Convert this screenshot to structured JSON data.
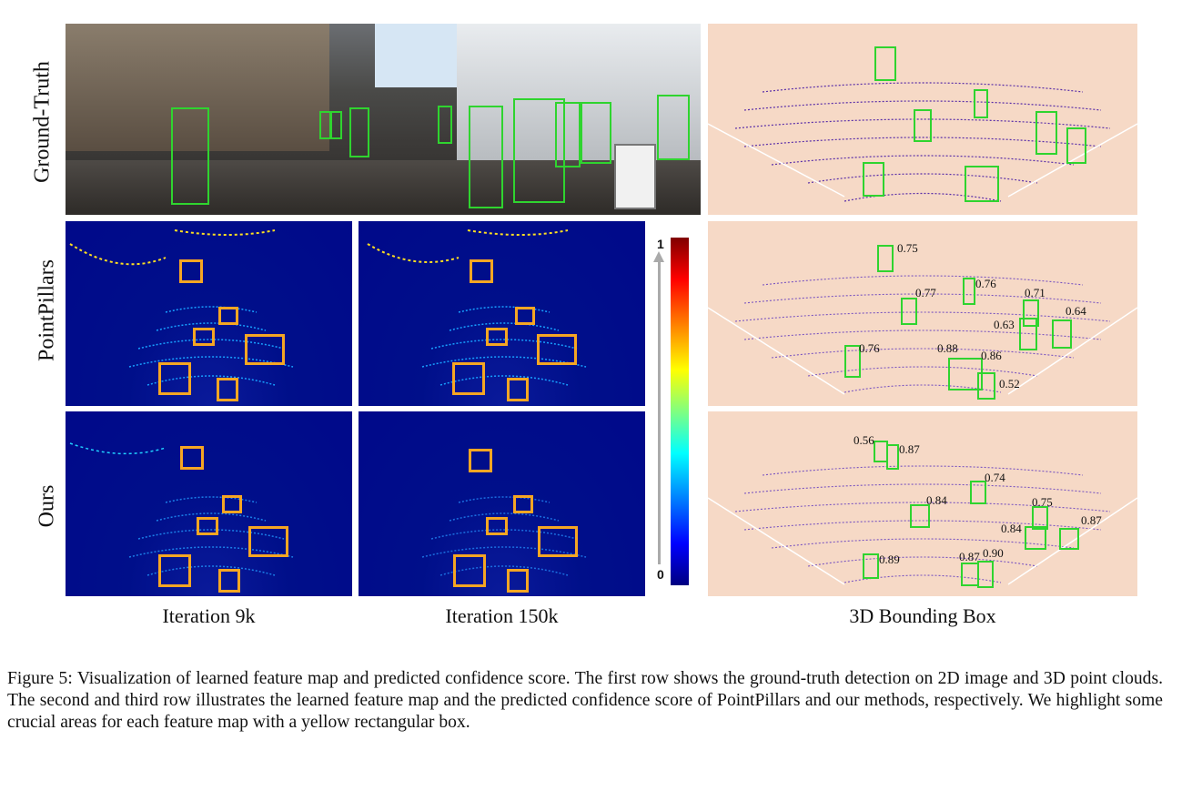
{
  "row_labels": [
    "Ground-Truth",
    "PointPillars",
    "Ours"
  ],
  "column_labels": [
    "Iteration 9k",
    "Iteration 150k",
    "3D Bounding Box"
  ],
  "colorbar": {
    "max_label": "1",
    "min_label": "0"
  },
  "pointpillars_scores": [
    "0.75",
    "0.77",
    "0.76",
    "0.71",
    "0.63",
    "0.64",
    "0.76",
    "0.88",
    "0.86",
    "0.52"
  ],
  "ours_scores": [
    "0.56",
    "0.87",
    "0.74",
    "0.84",
    "0.75",
    "0.84",
    "0.87",
    "0.89",
    "0.87",
    "0.90"
  ],
  "caption": "Figure 5: Visualization of learned feature map and predicted confidence score. The first row shows the ground-truth detection on 2D image and 3D point clouds. The second and third row illustrates the learned feature map and the predicted confidence score of PointPillars and our methods, respectively. We highlight some crucial areas for each feature map with a yellow rectangular box."
}
